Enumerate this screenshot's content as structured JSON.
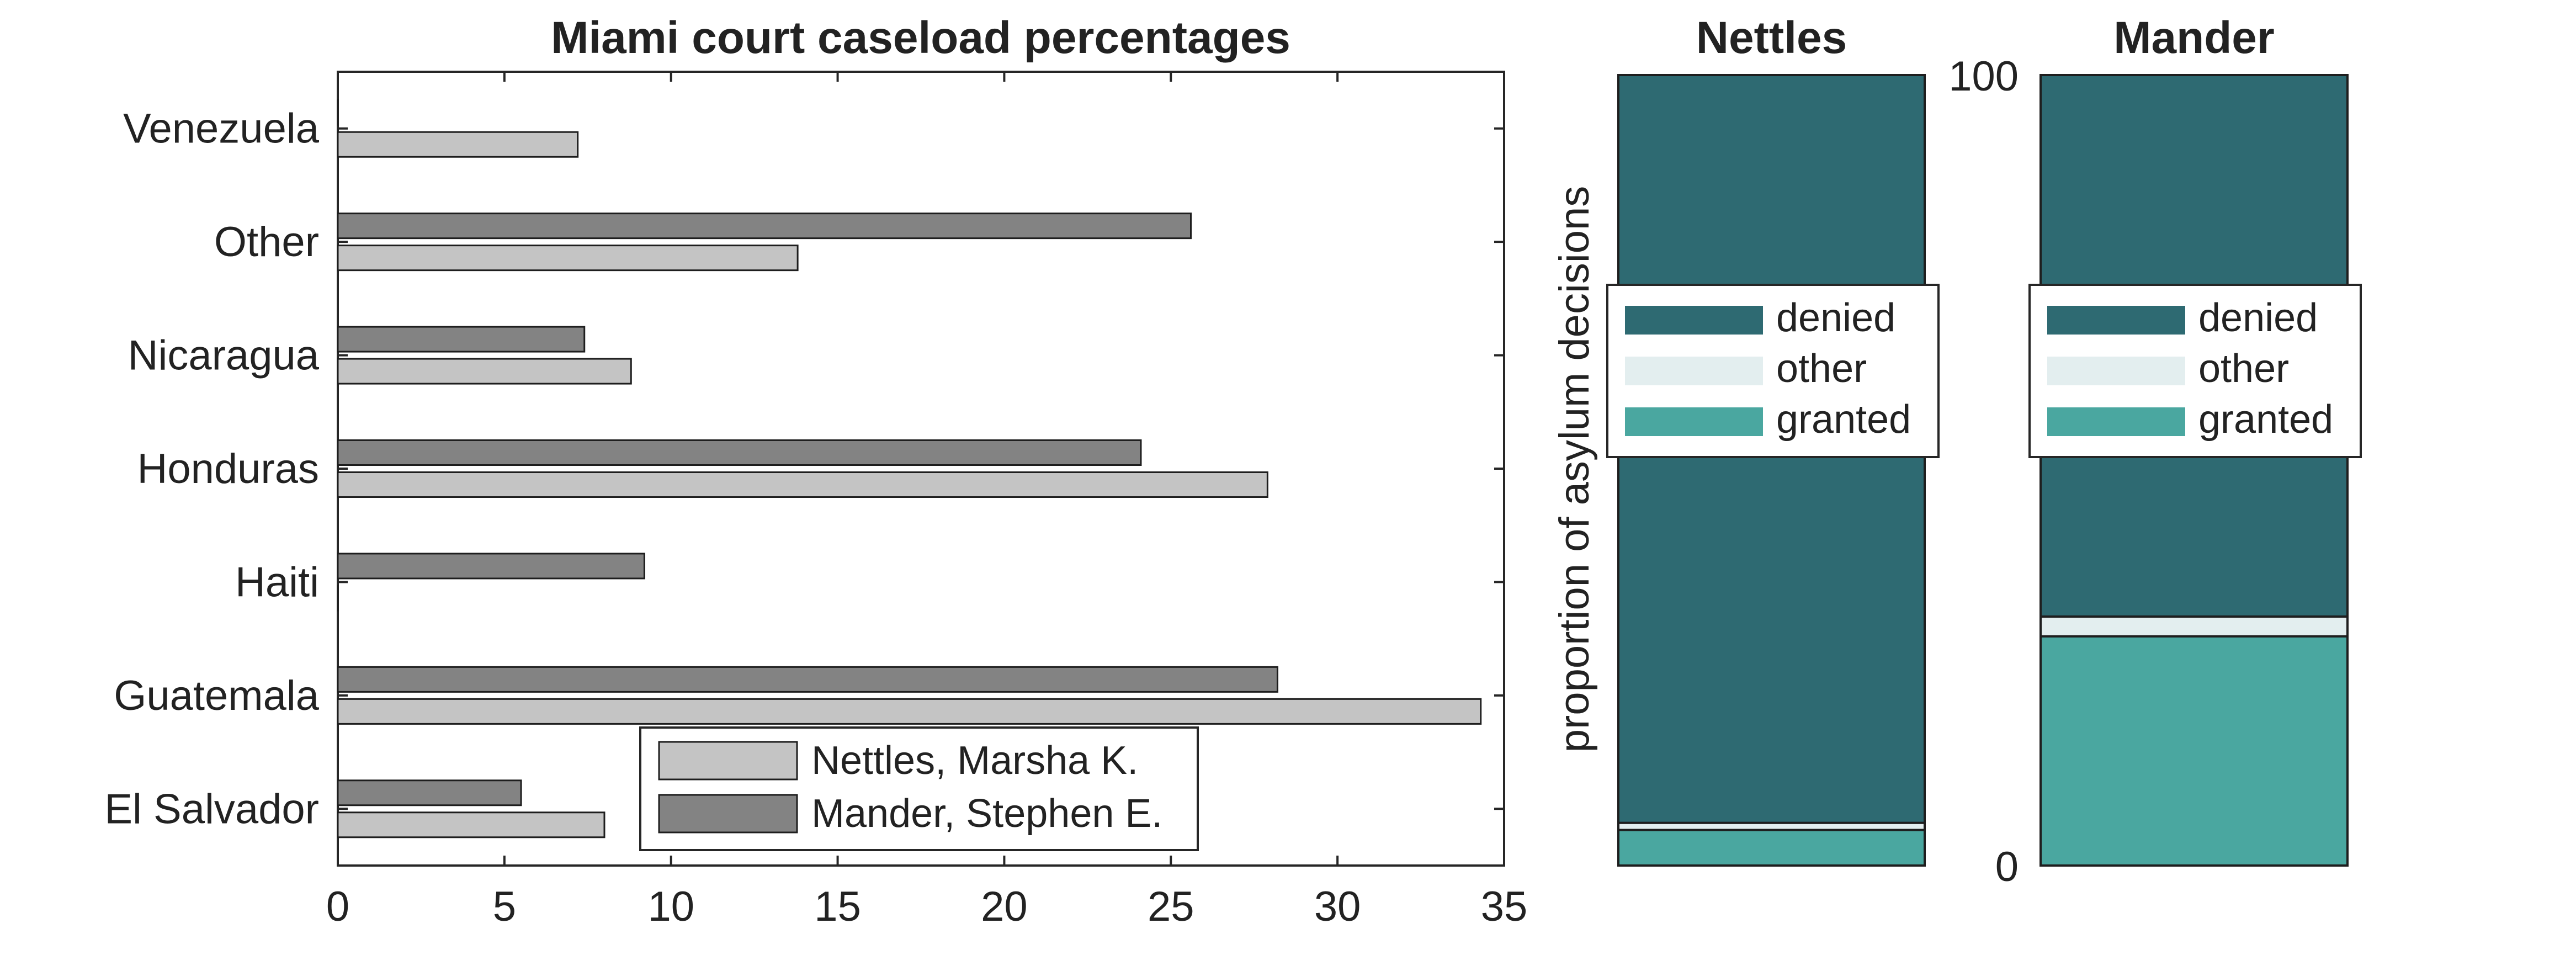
{
  "chart_data": [
    {
      "type": "bar",
      "orientation": "horizontal",
      "title": "Miami court caseload percentages",
      "xlabel": "",
      "ylabel": "",
      "categories": [
        "Venezuela",
        "Other",
        "Nicaragua",
        "Honduras",
        "Haiti",
        "Guatemala",
        "El Salvador"
      ],
      "series": [
        {
          "name": "Nettles, Marsha K.",
          "color": "#c4c4c4",
          "values": [
            7.2,
            13.8,
            8.8,
            27.9,
            0,
            34.3,
            8.0
          ]
        },
        {
          "name": "Mander, Stephen E.",
          "color": "#838383",
          "values": [
            0,
            25.6,
            7.4,
            24.1,
            9.2,
            28.2,
            5.5
          ]
        }
      ],
      "xlim": [
        0,
        35
      ],
      "xticks": [
        "0",
        "5",
        "10",
        "15",
        "20",
        "25",
        "30",
        "35"
      ],
      "grid": false,
      "legend_position": "bottom-center"
    },
    {
      "type": "stacked-bar",
      "title": "Nettles",
      "ylabel": "proportion of asylum decisions",
      "ylim": [
        0,
        100
      ],
      "segments": [
        {
          "name": "granted",
          "value": 4.5
        },
        {
          "name": "other",
          "value": 0.9
        },
        {
          "name": "denied",
          "value": 94.6
        }
      ],
      "legend_position": "middle"
    },
    {
      "type": "stacked-bar",
      "title": "Mander",
      "ylim": [
        0,
        100
      ],
      "yticks": [
        "0",
        "100"
      ],
      "segments": [
        {
          "name": "granted",
          "value": 29.0
        },
        {
          "name": "other",
          "value": 2.5
        },
        {
          "name": "denied",
          "value": 68.5
        }
      ],
      "legend_position": "middle"
    }
  ],
  "legend_stacked": [
    "denied",
    "other",
    "granted"
  ],
  "colors": {
    "denied": "#2e6a72",
    "other": "#e3eeef",
    "granted": "#4aa7a0"
  }
}
